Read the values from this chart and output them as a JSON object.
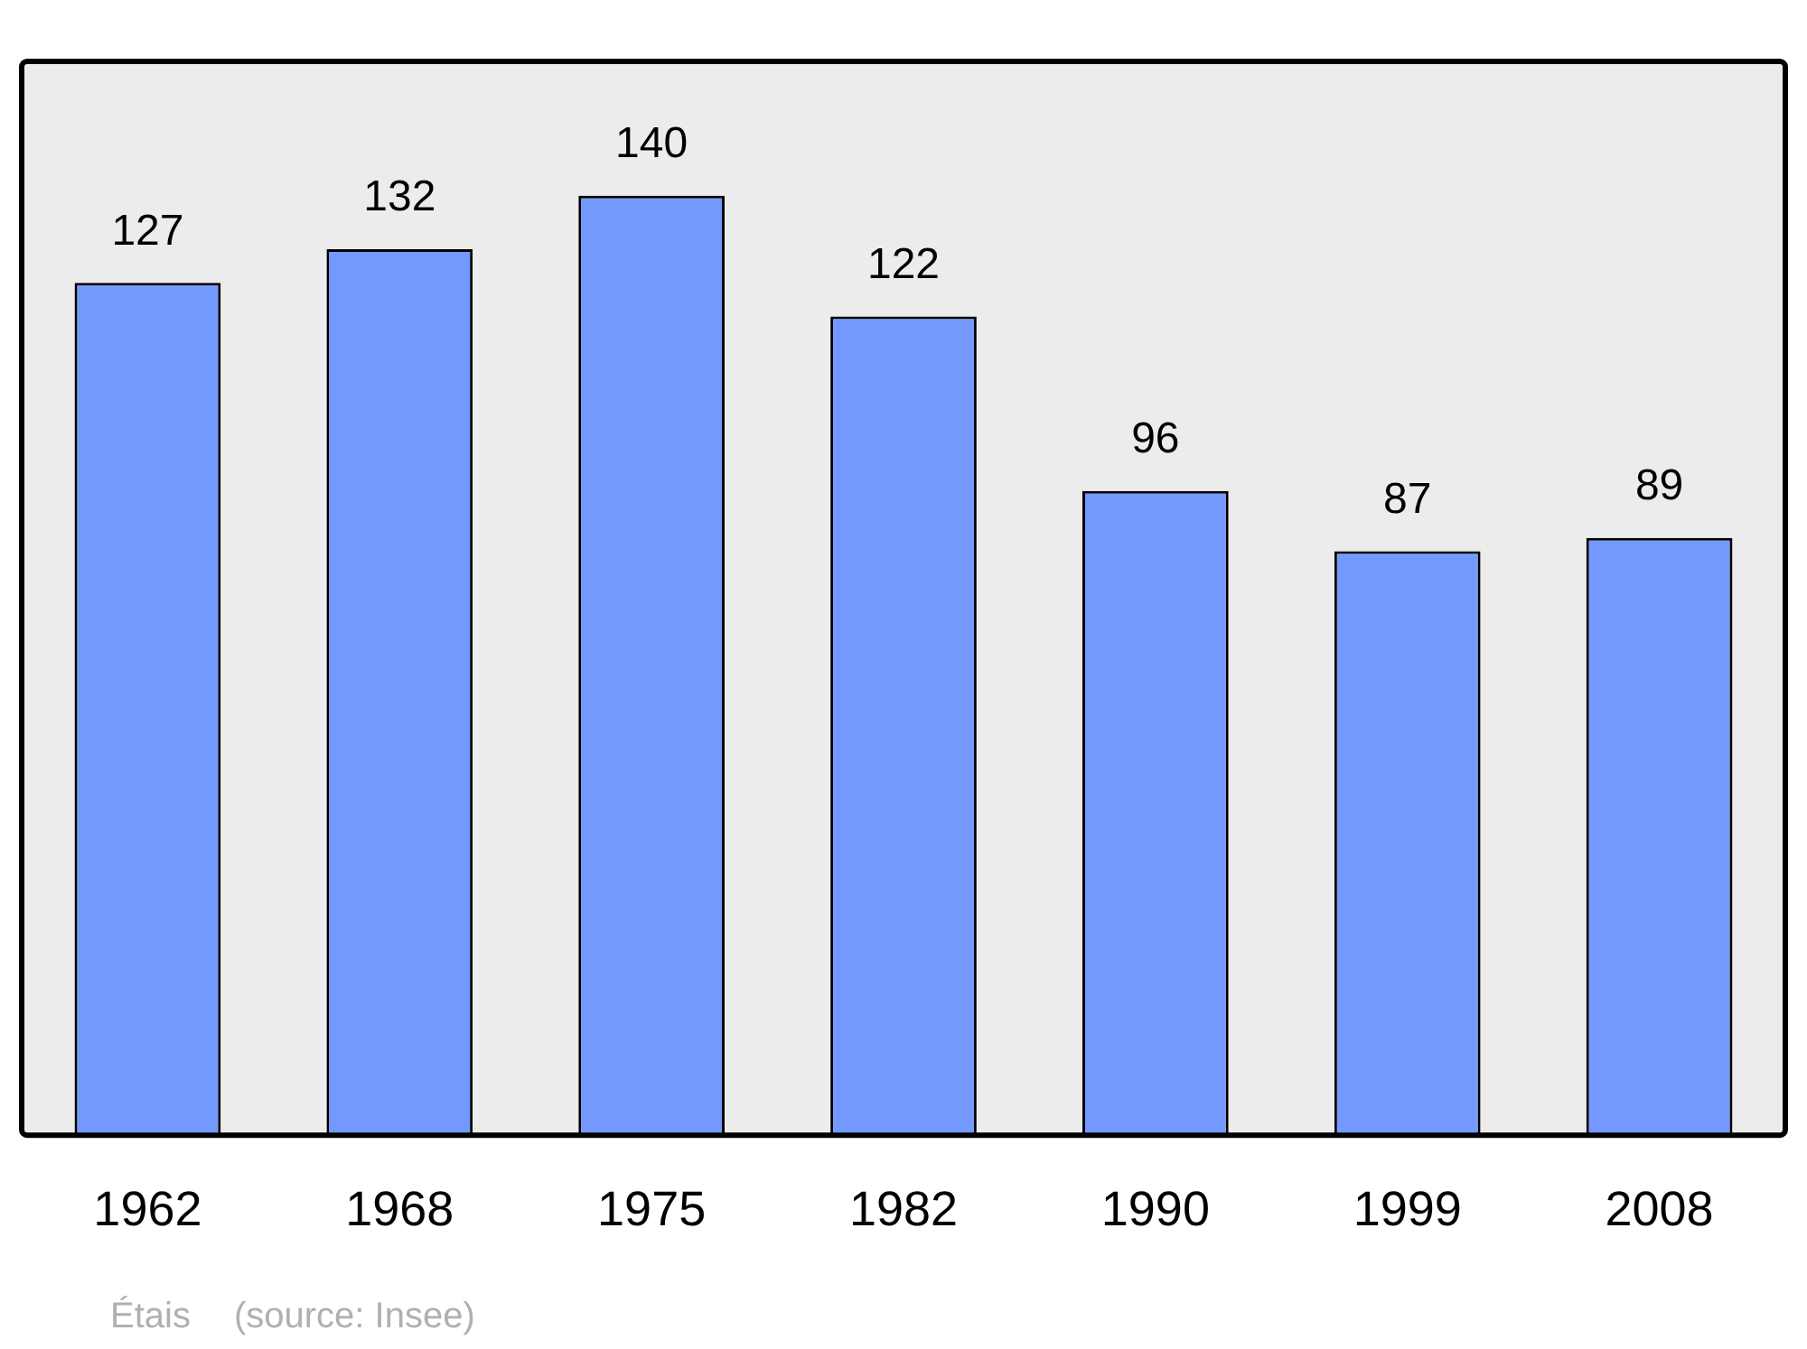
{
  "chart_data": {
    "type": "bar",
    "categories": [
      "1962",
      "1968",
      "1975",
      "1982",
      "1990",
      "1999",
      "2008"
    ],
    "values": [
      127,
      132,
      140,
      122,
      96,
      87,
      89
    ],
    "color": "#7399ff",
    "data_labels": true,
    "grid": false,
    "legend": false,
    "annotations": [
      "Étais",
      "(source: Insee)"
    ]
  }
}
